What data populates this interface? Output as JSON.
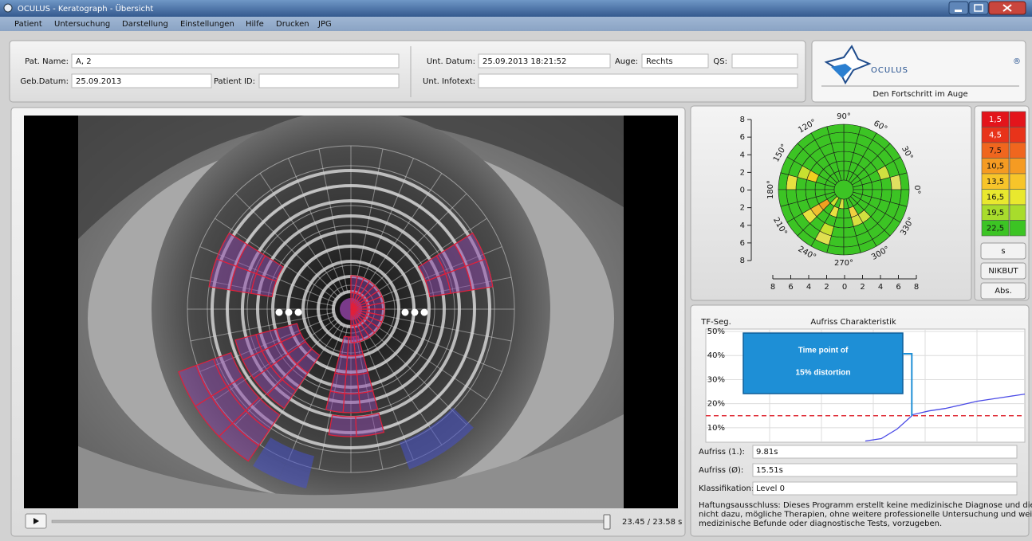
{
  "window": {
    "title": "OCULUS - Keratograph - Übersicht"
  },
  "menu": [
    "Patient",
    "Untersuchung",
    "Darstellung",
    "Einstellungen",
    "Hilfe",
    "Drucken",
    "JPG"
  ],
  "patient_form": {
    "fields": [
      {
        "label": "Pat. Name:",
        "value": "A, 2"
      },
      {
        "label": "Geb.Datum:",
        "value": "25.09.2013"
      },
      {
        "label": "Patient ID:"
      },
      {
        "label": "Unt. Datum:",
        "value": "25.09.2013 18:21:52"
      },
      {
        "label": "Auge:",
        "value": "Rechts"
      },
      {
        "label": "QS:"
      },
      {
        "label": "Unt. Infotext:"
      }
    ]
  },
  "logo": {
    "brand": "OCULUS",
    "mark": "®",
    "tagline": "Den Fortschritt im Auge"
  },
  "video": {
    "time_label": "23.45 / 23.58 s"
  },
  "topography": {
    "ylim": [
      -8,
      8
    ],
    "yticks": [
      8,
      6,
      4,
      2,
      0,
      {
        "value": -2,
        "label": "2"
      },
      {
        "value": -4,
        "label": "4"
      },
      {
        "value": -6,
        "label": "6"
      },
      {
        "value": -8,
        "label": "8"
      }
    ],
    "xlim": [
      -8,
      8
    ],
    "xticks": [
      {
        "value": -8,
        "label": "8"
      },
      {
        "value": -6,
        "label": "6"
      },
      {
        "value": -4,
        "label": "4"
      },
      {
        "value": -2,
        "label": "2"
      },
      0,
      2,
      4,
      6,
      8
    ],
    "angle_ticks": [
      {
        "value": 0,
        "label": "0°"
      },
      {
        "value": 30,
        "label": "30°"
      },
      {
        "value": 60,
        "label": "60°"
      },
      {
        "value": 90,
        "label": "90°"
      },
      {
        "value": 120,
        "label": "120°"
      },
      {
        "value": 150,
        "label": "150°"
      },
      {
        "value": 180,
        "label": "180°"
      },
      {
        "value": 210,
        "label": "210°"
      },
      {
        "value": 240,
        "label": "240°"
      },
      {
        "value": 270,
        "label": "270°"
      },
      {
        "value": 300,
        "label": "300°"
      },
      {
        "value": 330,
        "label": "330°"
      }
    ],
    "color_scale": [
      {
        "value": 1.5,
        "label": "1,5",
        "color": "#e3141b"
      },
      {
        "value": 4.5,
        "label": "4,5",
        "color": "#e8331a"
      },
      {
        "value": 7.5,
        "label": "7,5",
        "color": "#f0661e"
      },
      {
        "value": 10.5,
        "label": "10,5",
        "color": "#f59b22"
      },
      {
        "value": 13.5,
        "label": "13,5",
        "color": "#f7c52a"
      },
      {
        "value": 16.5,
        "label": "16,5",
        "color": "#e9e82e"
      },
      {
        "value": 19.5,
        "label": "19,5",
        "color": "#a8dc2c"
      },
      {
        "value": 22.5,
        "label": "22,5",
        "color": "#3cc424"
      }
    ],
    "buttons": [
      "s",
      "NIKBUT",
      "Abs."
    ]
  },
  "breakup_chart": {
    "type": "line",
    "title": "Aufriss Charakteristik",
    "y_label": "TF-Seg.",
    "ylim": [
      4,
      51
    ],
    "yticks": [
      {
        "value": 50,
        "label": "50%"
      },
      {
        "value": 40,
        "label": "40%"
      },
      {
        "value": 30,
        "label": "30%"
      },
      {
        "value": 20,
        "label": "20%"
      },
      {
        "value": 10,
        "label": "10%"
      }
    ],
    "categories": [
      null,
      null,
      null,
      null,
      null,
      null,
      null,
      null,
      null,
      null,
      null,
      null,
      null,
      null,
      null,
      null,
      null,
      null,
      null,
      null,
      null
    ],
    "values": [
      null,
      null,
      null,
      null,
      null,
      null,
      null,
      null,
      null,
      null,
      4.5,
      5.5,
      9.5,
      15.5,
      17,
      18,
      19.5,
      21,
      22,
      23,
      24
    ],
    "color": "#4a4ae6",
    "threshold": 15,
    "threshold_color": "#e0303a",
    "annotation": [
      "Time point of",
      "15% distortion"
    ]
  },
  "results": [
    {
      "label": "Aufriss (1.):",
      "value": "9.81s"
    },
    {
      "label": "Aufriss (Ø):",
      "value": "15.51s"
    },
    {
      "label": "Klassifikation:",
      "value": "Level 0"
    }
  ],
  "disclaimer": [
    "Haftungsausschluss: Dieses Programm erstellt keine medizinische Diagnose und dient",
    "nicht dazu, mögliche Therapien, ohne weitere professionelle Untersuchung und weitere",
    "medizinische Befunde oder diagnostische Tests, vorzugeben."
  ]
}
